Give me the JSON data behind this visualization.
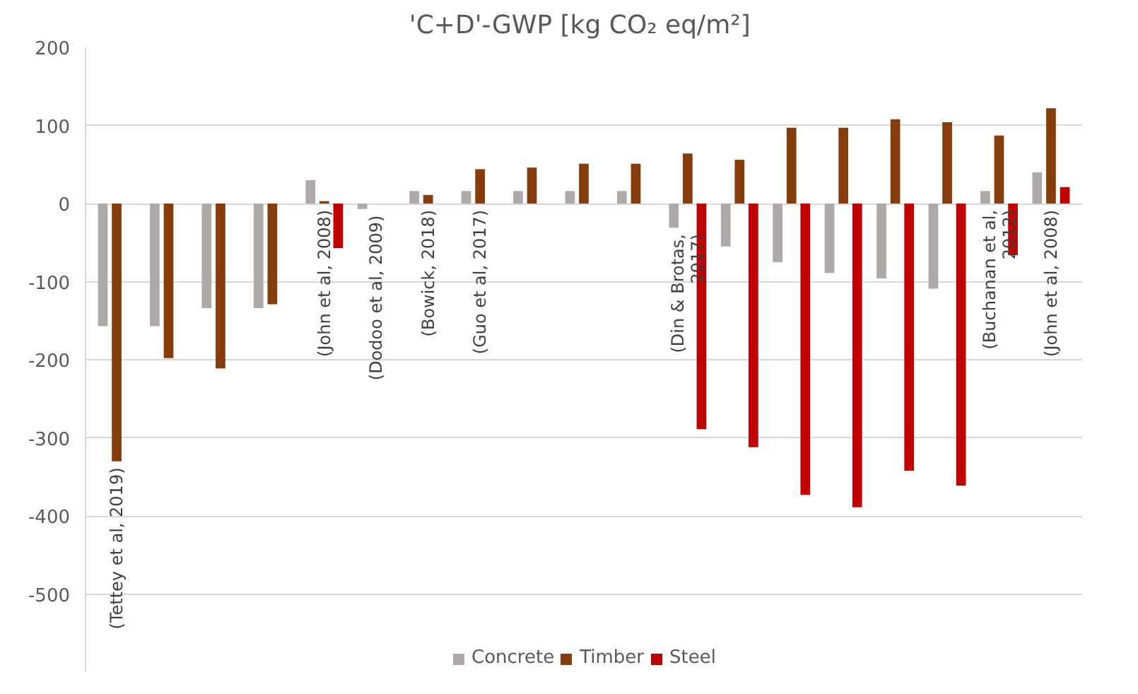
{
  "chart_data": {
    "type": "bar",
    "title": "'C+D'-GWP  [kg CO₂ eq/m²]",
    "categories": [
      "(Tettey et al, 2019)",
      null,
      null,
      null,
      "(John et al, 2008)",
      "(Dodoo et al, 2009)",
      "(Bowick, 2018)",
      "(Guo et al, 2017)",
      null,
      null,
      null,
      "(Din & Brotas,\n2017)",
      null,
      null,
      null,
      null,
      null,
      "(Buchanan et al,\n2012)",
      "(John et al, 2008)"
    ],
    "series": [
      {
        "name": "Concrete",
        "color": "#aeaaaa",
        "values": [
          -157,
          -157,
          -134,
          -134,
          30,
          -7,
          16,
          16,
          16,
          16,
          16,
          -31,
          -55,
          -75,
          -89,
          -96,
          -109,
          16,
          40
        ]
      },
      {
        "name": "Timber",
        "color": "#843c0c",
        "values": [
          -330,
          -198,
          -211,
          -129,
          3,
          null,
          11,
          44,
          46,
          51,
          51,
          64,
          56,
          97,
          97,
          108,
          104,
          87,
          122
        ]
      },
      {
        "name": "Steel",
        "color": "#c00000",
        "values": [
          null,
          null,
          null,
          null,
          -57,
          null,
          null,
          null,
          null,
          null,
          null,
          -289,
          -312,
          -373,
          -389,
          -342,
          -361,
          -66,
          21
        ]
      }
    ],
    "ylim": [
      -600,
      200
    ],
    "yticks": [
      -500,
      -400,
      -300,
      -200,
      -100,
      0,
      100,
      200
    ],
    "grid": "y",
    "legend": "bottom"
  }
}
